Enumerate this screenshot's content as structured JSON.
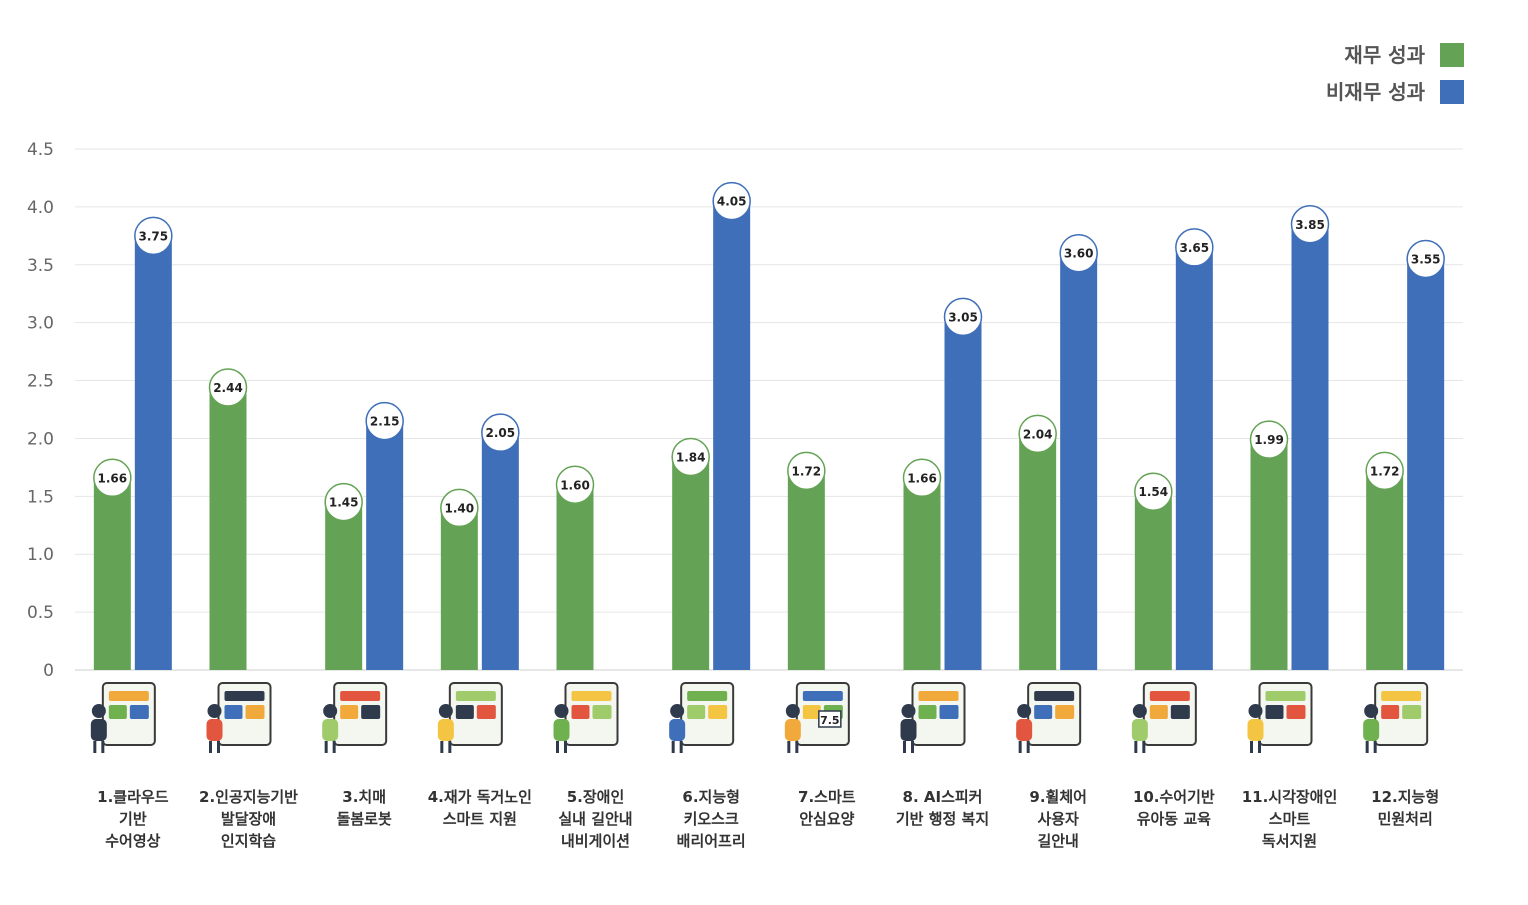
{
  "chart_data": {
    "type": "bar",
    "title": "",
    "xlabel": "",
    "ylabel": "",
    "ylim": [
      0,
      4.5
    ],
    "yticks": [
      "0",
      "0.5",
      "1.0",
      "1.5",
      "2.0",
      "2.5",
      "3.0",
      "3.5",
      "4.0",
      "4.5"
    ],
    "grid": true,
    "legend_position": "top-right",
    "categories": [
      [
        "1.클라우드",
        "기반",
        "수어영상"
      ],
      [
        "2.인공지능기반",
        "발달장애",
        "인지학습"
      ],
      [
        "3.치매",
        "돌봄로봇"
      ],
      [
        "4.재가 독거노인",
        "스마트 지원"
      ],
      [
        "5.장애인",
        "실내 길안내",
        "내비게이션"
      ],
      [
        "6.지능형",
        "키오스크",
        "배리어프리"
      ],
      [
        "7.스마트",
        "안심요양"
      ],
      [
        "8. AI스피커",
        "기반 행정 복지"
      ],
      [
        "9.휠체어",
        "사용자",
        "길안내"
      ],
      [
        "10.수어기반",
        "유아동 교육"
      ],
      [
        "11.시각장애인",
        "스마트",
        "독서지원"
      ],
      [
        "12.지능형",
        "민원처리"
      ]
    ],
    "series": [
      {
        "name": "재무 성과",
        "color": "#64A355",
        "values": [
          1.66,
          2.44,
          1.45,
          1.4,
          1.6,
          1.84,
          1.72,
          1.66,
          2.04,
          1.54,
          1.99,
          1.72
        ],
        "labels": [
          "1.66",
          "2.44",
          "1.45",
          "1.40",
          "1.60",
          "1.84",
          "1.72",
          "1.66",
          "2.04",
          "1.54",
          "1.99",
          "1.72"
        ]
      },
      {
        "name": "비재무 성과",
        "color": "#3E6FB8",
        "values": [
          3.75,
          null,
          2.15,
          2.05,
          null,
          4.05,
          null,
          3.05,
          3.6,
          3.65,
          3.85,
          3.55
        ],
        "labels": [
          "3.75",
          null,
          "2.15",
          "2.05",
          null,
          "4.05",
          null,
          "3.05",
          "3.60",
          "3.65",
          "3.85",
          "3.55"
        ]
      }
    ],
    "illustration_text": [
      "7.5"
    ]
  }
}
